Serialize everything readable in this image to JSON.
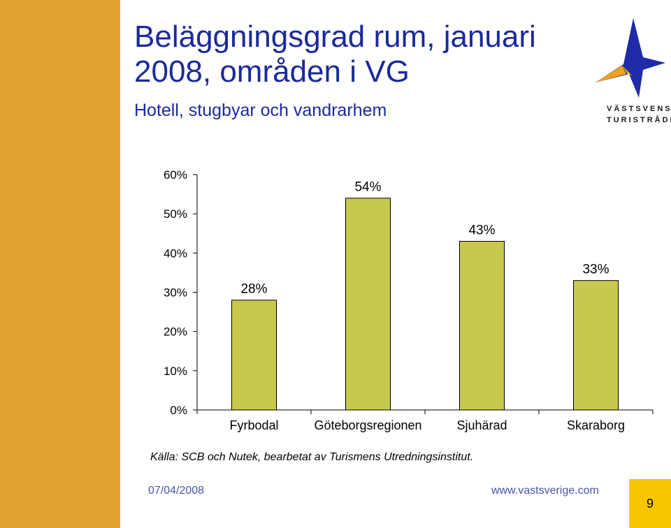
{
  "header": {
    "title": "Beläggningsgrad rum, januari 2008, områden i VG",
    "subtitle": "Hotell, stugbyar och vandrarhem"
  },
  "logo": {
    "line1": "VÄSTSVENSKA",
    "line2": "TURISTRÅDET"
  },
  "chart_data": {
    "type": "bar",
    "categories": [
      "Fyrbodal",
      "Göteborgsregionen",
      "Sjuhärad",
      "Skaraborg"
    ],
    "values": [
      28,
      54,
      43,
      33
    ],
    "data_labels": [
      "28%",
      "54%",
      "43%",
      "33%"
    ],
    "y_ticks": [
      0,
      10,
      20,
      30,
      40,
      50,
      60
    ],
    "y_tick_labels": [
      "0%",
      "10%",
      "20%",
      "30%",
      "40%",
      "50%",
      "60%"
    ],
    "ylim": [
      0,
      60
    ],
    "bar_color": "#c8c84e",
    "grid": false
  },
  "footer": {
    "source": "Källa: SCB och Nutek, bearbetat av Turismens Utredningsinstitut.",
    "date": "07/04/2008",
    "url": "www.vastsverige.com",
    "page_number": "9"
  },
  "colors": {
    "sidebar": "#e2a230",
    "title": "#1a2a9a",
    "page_box": "#f7c600"
  }
}
